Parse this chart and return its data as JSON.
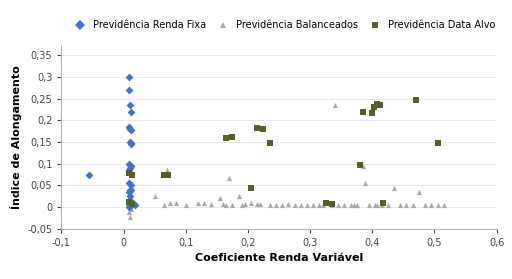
{
  "xlabel": "Coeficiente Renda Variável",
  "ylabel": "Índice de Alongamento",
  "xlim": [
    -0.1,
    0.6
  ],
  "ylim": [
    -0.05,
    0.375
  ],
  "xticks": [
    -0.1,
    0.0,
    0.1,
    0.2,
    0.3,
    0.4,
    0.5,
    0.6
  ],
  "yticks": [
    -0.05,
    0.0,
    0.05,
    0.1,
    0.15,
    0.2,
    0.25,
    0.3,
    0.35
  ],
  "renda_fixa_x": [
    -0.055,
    0.008,
    0.008,
    0.01,
    0.012,
    0.01,
    0.012,
    0.008,
    0.01,
    0.012,
    0.012,
    0.008,
    0.012,
    0.01,
    0.008,
    0.012,
    0.008,
    0.01,
    0.012,
    0.008,
    0.01,
    0.008,
    0.012,
    0.01,
    0.008,
    0.012,
    0.01,
    0.008,
    0.015,
    0.018
  ],
  "renda_fixa_y": [
    0.075,
    0.3,
    0.27,
    0.235,
    0.22,
    0.18,
    0.178,
    0.185,
    0.15,
    0.148,
    0.145,
    0.1,
    0.095,
    0.09,
    0.085,
    0.05,
    0.055,
    0.04,
    0.04,
    0.035,
    0.025,
    0.015,
    0.012,
    0.01,
    0.007,
    0.005,
    0.003,
    0.0,
    0.01,
    0.005
  ],
  "balanceados_x": [
    0.008,
    0.01,
    0.012,
    0.008,
    0.012,
    0.008,
    0.012,
    0.008,
    0.01,
    0.05,
    0.065,
    0.07,
    0.075,
    0.085,
    0.1,
    0.12,
    0.13,
    0.14,
    0.155,
    0.16,
    0.165,
    0.17,
    0.175,
    0.185,
    0.19,
    0.195,
    0.205,
    0.215,
    0.22,
    0.235,
    0.245,
    0.255,
    0.265,
    0.275,
    0.285,
    0.295,
    0.305,
    0.315,
    0.32,
    0.335,
    0.34,
    0.345,
    0.355,
    0.365,
    0.37,
    0.375,
    0.385,
    0.388,
    0.395,
    0.405,
    0.408,
    0.415,
    0.425,
    0.435,
    0.445,
    0.455,
    0.465,
    0.475,
    0.485,
    0.495,
    0.505,
    0.515
  ],
  "balanceados_y": [
    0.02,
    0.025,
    0.02,
    0.012,
    0.01,
    0.007,
    -0.005,
    -0.012,
    -0.022,
    0.025,
    0.005,
    0.085,
    0.01,
    0.01,
    0.005,
    0.01,
    0.01,
    0.007,
    0.022,
    0.007,
    0.005,
    0.068,
    0.005,
    0.025,
    0.005,
    0.007,
    0.01,
    0.007,
    0.007,
    0.005,
    0.005,
    0.005,
    0.007,
    0.005,
    0.005,
    0.005,
    0.005,
    0.005,
    0.005,
    0.005,
    0.235,
    0.005,
    0.005,
    0.005,
    0.005,
    0.005,
    0.095,
    0.055,
    0.005,
    0.005,
    0.005,
    0.005,
    0.005,
    0.045,
    0.005,
    0.005,
    0.005,
    0.035,
    0.005,
    0.005,
    0.005,
    0.005
  ],
  "data_alvo_x": [
    0.008,
    0.013,
    0.008,
    0.013,
    0.065,
    0.072,
    0.165,
    0.175,
    0.205,
    0.215,
    0.225,
    0.235,
    0.325,
    0.335,
    0.38,
    0.385,
    0.4,
    0.402,
    0.408,
    0.413,
    0.418,
    0.47,
    0.505
  ],
  "data_alvo_y": [
    0.078,
    0.075,
    0.012,
    0.008,
    0.073,
    0.073,
    0.16,
    0.162,
    0.043,
    0.182,
    0.18,
    0.147,
    0.01,
    0.008,
    0.097,
    0.22,
    0.218,
    0.232,
    0.237,
    0.235,
    0.01,
    0.247,
    0.147
  ],
  "color_renda_fixa": "#4472C4",
  "color_balanceados": "#A9A9A9",
  "color_data_alvo": "#4F6228",
  "legend_labels": [
    "Previdência Renda Fixa",
    "Previdência Balanceados",
    "Previdência Data Alvo"
  ],
  "tick_label_fontsize": 7,
  "axis_label_fontsize": 8,
  "legend_fontsize": 7,
  "background_color": "#ffffff"
}
